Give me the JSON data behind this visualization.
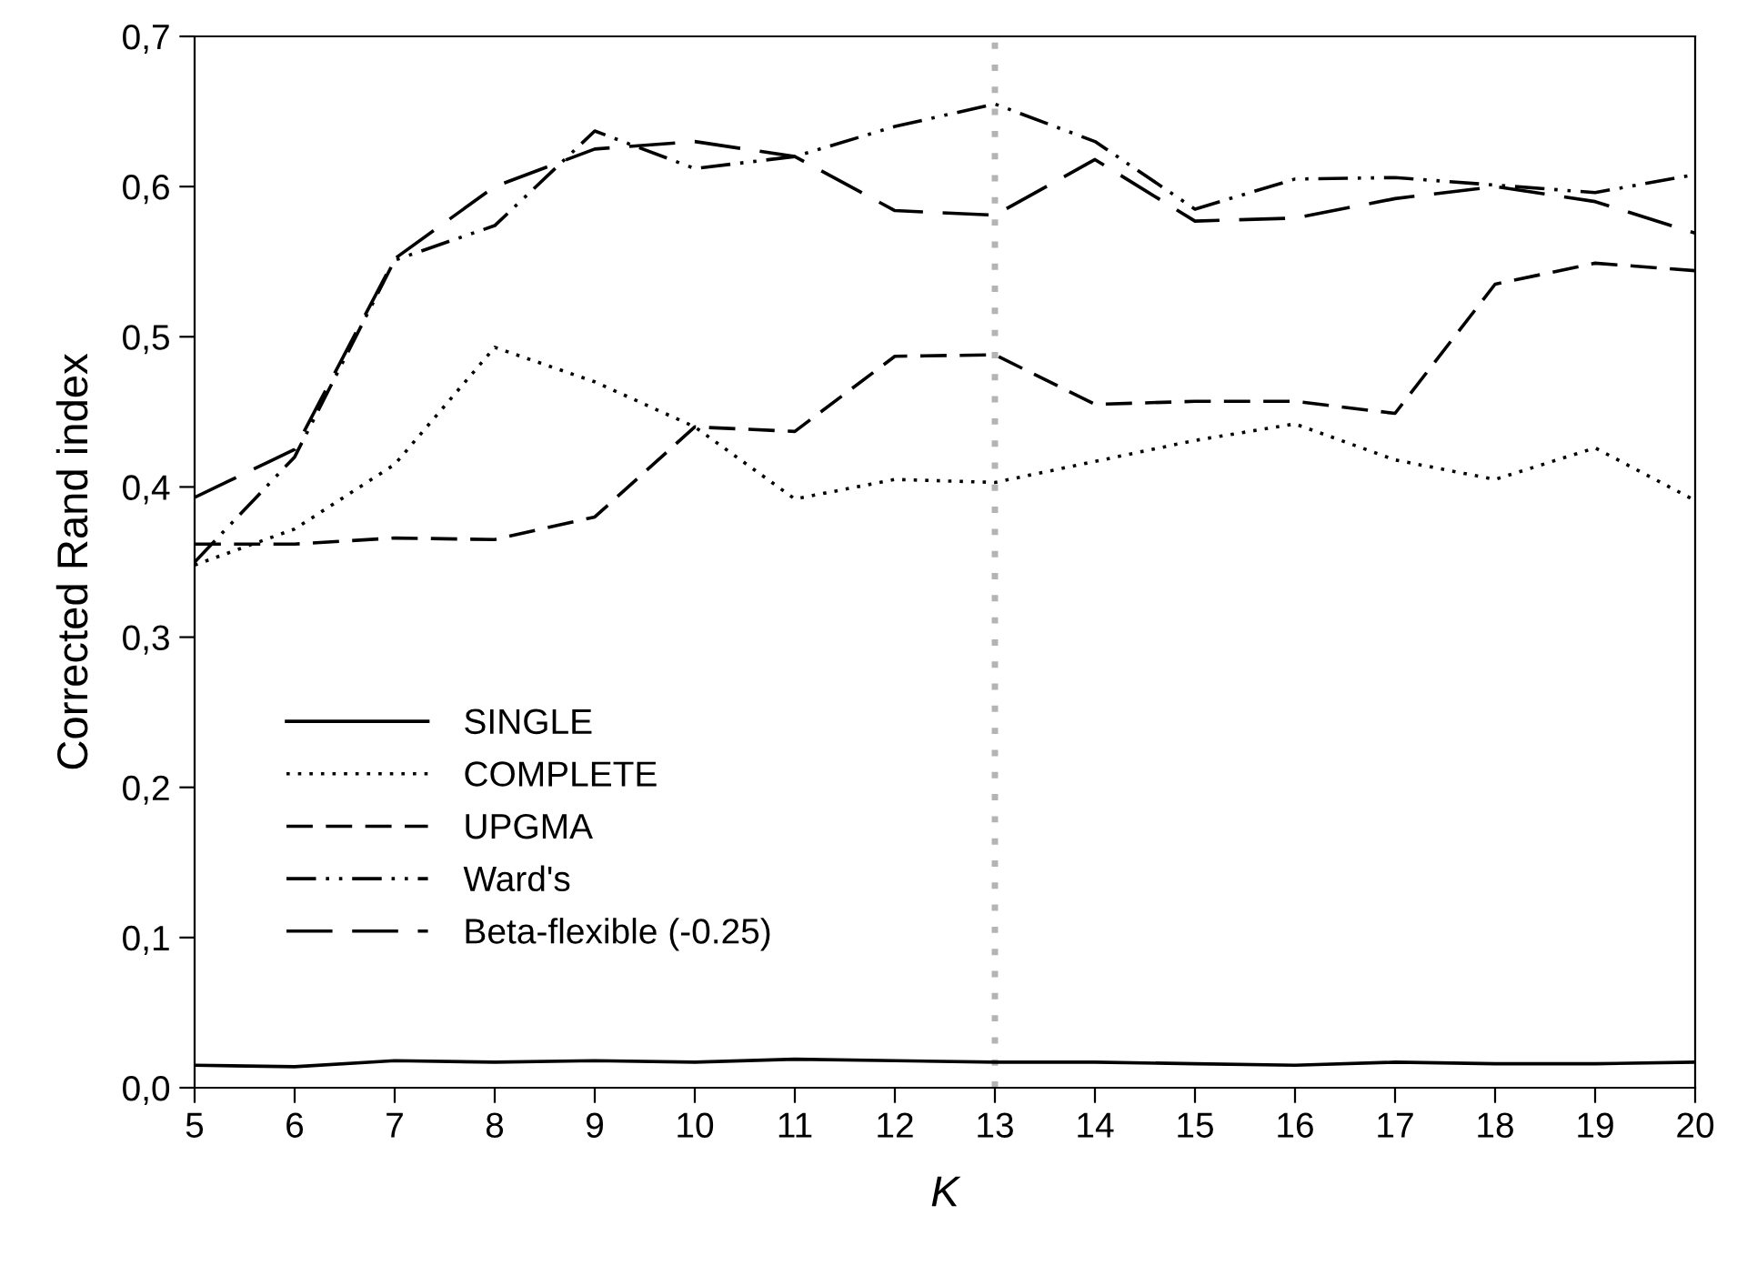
{
  "chart_data": {
    "type": "line",
    "xlabel": "K",
    "ylabel": "Corrected Rand index",
    "x": [
      5,
      6,
      7,
      8,
      9,
      10,
      11,
      12,
      13,
      14,
      15,
      16,
      17,
      18,
      19,
      20
    ],
    "series": [
      {
        "name": "SINGLE",
        "color": "#000000",
        "line_style": "solid",
        "values": [
          0.015,
          0.014,
          0.018,
          0.017,
          0.018,
          0.017,
          0.019,
          0.018,
          0.017,
          0.017,
          0.016,
          0.015,
          0.017,
          0.016,
          0.016,
          0.017
        ]
      },
      {
        "name": "COMPLETE",
        "color": "#000000",
        "line_style": "dotted",
        "values": [
          0.348,
          0.372,
          0.415,
          0.493,
          0.47,
          0.44,
          0.392,
          0.405,
          0.403,
          0.417,
          0.431,
          0.442,
          0.418,
          0.405,
          0.426,
          0.391
        ]
      },
      {
        "name": "UPGMA",
        "color": "#000000",
        "line_style": "dashed",
        "values": [
          0.362,
          0.362,
          0.366,
          0.365,
          0.38,
          0.44,
          0.437,
          0.487,
          0.488,
          0.455,
          0.457,
          0.457,
          0.449,
          0.535,
          0.549,
          0.544
        ]
      },
      {
        "name": "Ward's",
        "color": "#000000",
        "line_style": "dashdotdot",
        "values": [
          0.35,
          0.42,
          0.551,
          0.574,
          0.637,
          0.612,
          0.62,
          0.64,
          0.655,
          0.63,
          0.585,
          0.605,
          0.606,
          0.601,
          0.596,
          0.608
        ]
      },
      {
        "name": "Beta-flexible (-0.25)",
        "color": "#000000",
        "line_style": "longdash",
        "values": [
          0.393,
          0.425,
          0.552,
          0.6,
          0.625,
          0.63,
          0.62,
          0.584,
          0.581,
          0.618,
          0.577,
          0.579,
          0.592,
          0.6,
          0.59,
          0.569
        ]
      }
    ],
    "xlim": [
      5,
      20
    ],
    "xticks": [
      5,
      6,
      7,
      8,
      9,
      10,
      11,
      12,
      13,
      14,
      15,
      16,
      17,
      18,
      19,
      20
    ],
    "ylim": [
      0,
      0.7
    ],
    "yticks": [
      {
        "value": 0,
        "label": "0,0"
      },
      {
        "value": 0.1,
        "label": "0,1"
      },
      {
        "value": 0.2,
        "label": "0,2"
      },
      {
        "value": 0.3,
        "label": "0,3"
      },
      {
        "value": 0.4,
        "label": "0,4"
      },
      {
        "value": 0.5,
        "label": "0,5"
      },
      {
        "value": 0.6,
        "label": "0,6"
      },
      {
        "value": 0.7,
        "label": "0,7"
      }
    ],
    "ref_lines": [
      {
        "axis": "x",
        "value": 13,
        "color": "#b4b4b4",
        "line_style": "dotted"
      }
    ],
    "grid": false,
    "legend": "bottom left",
    "marker": "none"
  }
}
